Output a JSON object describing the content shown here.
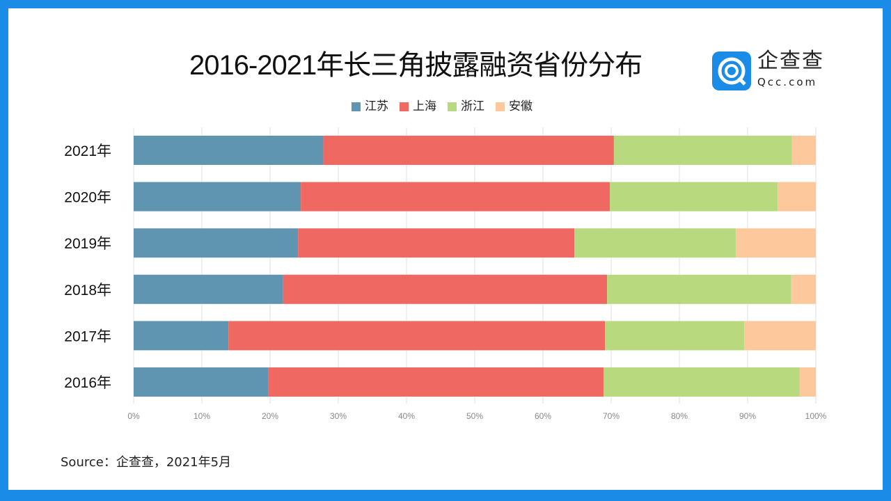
{
  "logo": {
    "cn": "企查查",
    "en": "Qcc.com"
  },
  "chart_data": {
    "type": "bar",
    "orientation": "horizontal",
    "stacked": "percent",
    "title": "2016-2021年长三角披露融资省份分布",
    "categories": [
      "2021年",
      "2020年",
      "2019年",
      "2018年",
      "2017年",
      "2016年"
    ],
    "series": [
      {
        "name": "江苏",
        "color": "#5f95b1",
        "values": [
          27.8,
          24.5,
          24.1,
          21.9,
          13.9,
          19.7
        ]
      },
      {
        "name": "上海",
        "color": "#ef6962",
        "values": [
          42.6,
          45.3,
          40.5,
          47.5,
          55.2,
          49.2
        ]
      },
      {
        "name": "浙江",
        "color": "#b8d97e",
        "values": [
          26.1,
          24.6,
          23.7,
          27.0,
          20.4,
          28.7
        ]
      },
      {
        "name": "安徽",
        "color": "#fdc99c",
        "values": [
          3.5,
          5.6,
          11.7,
          3.6,
          10.5,
          2.4
        ]
      }
    ],
    "xlim": [
      0,
      100
    ],
    "xticks": [
      "0%",
      "10%",
      "20%",
      "30%",
      "40%",
      "50%",
      "60%",
      "70%",
      "80%",
      "90%",
      "100%"
    ],
    "grid": true,
    "legend": "top"
  },
  "source": "Source：企查查，2021年5月"
}
